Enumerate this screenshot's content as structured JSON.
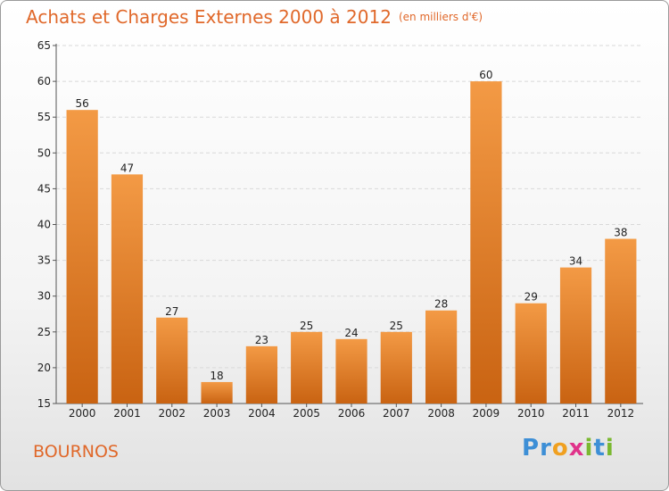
{
  "chart_data": {
    "type": "bar",
    "title": "Achats et Charges Externes 2000 à 2012",
    "subtitle": "(en milliers d'€)",
    "categories": [
      "2000",
      "2001",
      "2002",
      "2003",
      "2004",
      "2005",
      "2006",
      "2007",
      "2008",
      "2009",
      "2010",
      "2011",
      "2012"
    ],
    "values": [
      56,
      47,
      27,
      18,
      23,
      25,
      24,
      25,
      28,
      60,
      29,
      34,
      38
    ],
    "ylim": [
      15,
      65
    ],
    "yticks": [
      15,
      20,
      25,
      30,
      35,
      40,
      45,
      50,
      55,
      60,
      65
    ],
    "grid": true,
    "bar_color": "#f39a45",
    "bar_color_dark": "#c96312"
  },
  "commune": "BOURNOS",
  "logo": {
    "letters": [
      {
        "char": "P",
        "color": "#3d8fd6"
      },
      {
        "char": "r",
        "color": "#3d8fd6"
      },
      {
        "char": "o",
        "color": "#f0a020"
      },
      {
        "char": "x",
        "color": "#e0328a"
      },
      {
        "char": "i",
        "color": "#7ab830"
      },
      {
        "char": "t",
        "color": "#3d8fd6"
      },
      {
        "char": "i",
        "color": "#7ab830"
      }
    ]
  },
  "accent_color": "#e0682a"
}
